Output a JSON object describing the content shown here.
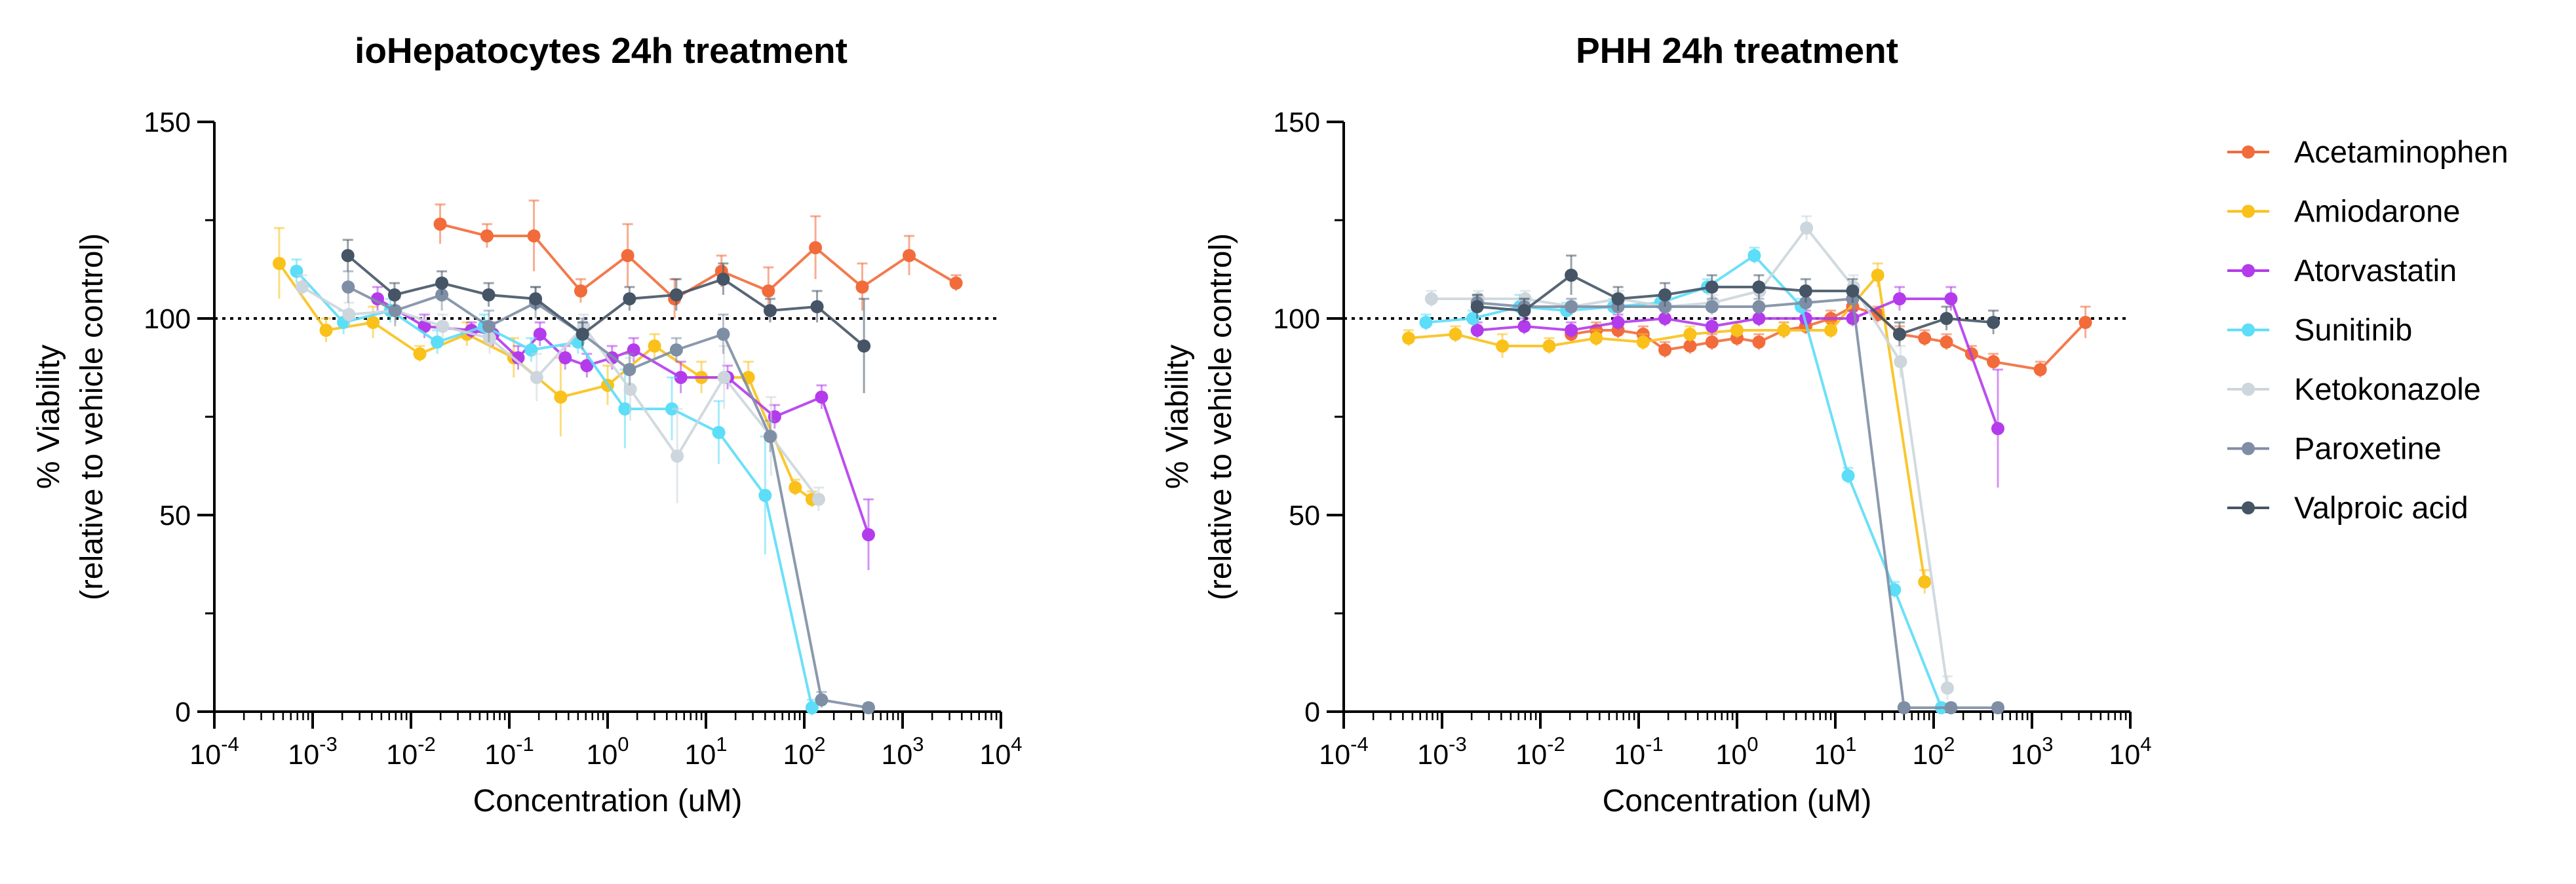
{
  "chart_data": [
    {
      "type": "line",
      "title": "ioHepatocytes 24h treatment",
      "xlabel": "Concentration (uM)",
      "ylabel_line1": "% Viability",
      "ylabel_line2": "(relative to vehicle control)",
      "x_scale": "log10",
      "xlim": [
        0.0001,
        10000
      ],
      "ylim": [
        0,
        150
      ],
      "x_ticks": [
        "10-4",
        "10-3",
        "10-2",
        "10-1",
        "100",
        "101",
        "102",
        "103",
        "104"
      ],
      "y_ticks": [
        0,
        50,
        100,
        150
      ],
      "reference_line": 100,
      "series": [
        {
          "name": "Acetaminophen",
          "x": [
            0.0198,
            0.0593,
            0.178,
            0.533,
            1.6,
            4.8,
            14.4,
            43.2,
            130,
            389,
            1166,
            3500
          ],
          "y": [
            124,
            121,
            121,
            107,
            116,
            105,
            112,
            107,
            118,
            108,
            116,
            109
          ],
          "err": [
            5,
            3,
            9,
            3,
            8,
            5,
            4,
            6,
            8,
            6,
            5,
            2
          ]
        },
        {
          "name": "Amiodarone",
          "x": [
            0.000457,
            0.00137,
            0.00411,
            0.0123,
            0.037,
            0.111,
            0.333,
            1.0,
            3.0,
            9.0,
            27,
            81,
            120
          ],
          "y": [
            114,
            97,
            99,
            91,
            96,
            90,
            80,
            83,
            93,
            85,
            85,
            57,
            54
          ],
          "err": [
            9,
            3,
            4,
            2,
            3,
            5,
            10,
            5,
            3,
            4,
            4,
            2,
            2
          ]
        },
        {
          "name": "Atorvastatin",
          "x": [
            0.00457,
            0.0137,
            0.0412,
            0.0682,
            0.123,
            0.205,
            0.37,
            0.615,
            1.11,
            1.84,
            5.55,
            16.6,
            50,
            150,
            450
          ],
          "y": [
            105,
            98,
            97,
            96,
            90,
            96,
            90,
            88,
            90,
            92,
            85,
            85,
            75,
            80,
            45
          ],
          "err": [
            3,
            3,
            2,
            3,
            3,
            3,
            3,
            3,
            3,
            3,
            4,
            3,
            3,
            3,
            9
          ]
        },
        {
          "name": "Sunitinib",
          "x": [
            0.000686,
            0.00206,
            0.00617,
            0.0185,
            0.0556,
            0.167,
            0.5,
            1.5,
            4.5,
            13.5,
            40,
            120
          ],
          "y": [
            112,
            99,
            102,
            94,
            98,
            92,
            94,
            77,
            77,
            71,
            55,
            1
          ],
          "err": [
            3,
            3,
            3,
            3,
            3,
            3,
            3,
            10,
            8,
            8,
            15,
            2
          ]
        },
        {
          "name": "Ketokonazole",
          "x": [
            0.00078,
            0.00234,
            0.007,
            0.021,
            0.063,
            0.19,
            0.57,
            1.7,
            5.1,
            15.3,
            46,
            140
          ],
          "y": [
            108,
            101,
            102,
            98,
            95,
            85,
            98,
            82,
            65,
            85,
            70,
            54
          ],
          "err": [
            3,
            3,
            3,
            3,
            4,
            6,
            3,
            8,
            12,
            8,
            10,
            3
          ]
        },
        {
          "name": "Paroxetine",
          "x": [
            0.0023,
            0.0069,
            0.0206,
            0.062,
            0.185,
            0.555,
            1.67,
            5.0,
            15,
            45,
            150,
            450
          ],
          "y": [
            108,
            102,
            106,
            98,
            104,
            96,
            87,
            92,
            96,
            70,
            3,
            1
          ],
          "err": [
            4,
            4,
            4,
            4,
            4,
            4,
            4,
            3,
            5,
            4,
            2,
            1
          ]
        },
        {
          "name": "Valproic acid",
          "x": [
            0.00228,
            0.0068,
            0.0206,
            0.0617,
            0.185,
            0.556,
            1.67,
            5.0,
            15,
            45,
            135,
            405
          ],
          "y": [
            116,
            106,
            109,
            106,
            105,
            96,
            105,
            106,
            110,
            102,
            103,
            93
          ],
          "err": [
            4,
            3,
            3,
            3,
            3,
            3,
            3,
            4,
            4,
            3,
            4,
            12
          ]
        }
      ]
    },
    {
      "type": "line",
      "title": "PHH 24h treatment",
      "xlabel": "Concentration (uM)",
      "ylabel_line1": "% Viability",
      "ylabel_line2": "(relative to vehicle control)",
      "x_scale": "log10",
      "xlim": [
        0.0001,
        10000
      ],
      "ylim": [
        0,
        150
      ],
      "x_ticks": [
        "10-4",
        "10-3",
        "10-2",
        "10-1",
        "100",
        "101",
        "102",
        "103",
        "104"
      ],
      "y_ticks": [
        0,
        50,
        100,
        150
      ],
      "reference_line": 100,
      "series": [
        {
          "name": "Acetaminophen",
          "x": [
            0.0206,
            0.037,
            0.0617,
            0.111,
            0.185,
            0.333,
            0.556,
            1.0,
            1.67,
            3.0,
            5.0,
            9.0,
            15,
            27,
            45,
            81,
            135,
            243,
            405,
            1215,
            3500
          ],
          "y": [
            96,
            97,
            97,
            96,
            92,
            93,
            94,
            95,
            94,
            97,
            98,
            100,
            103,
            101,
            96,
            95,
            94,
            91,
            89,
            87,
            99
          ],
          "err": [
            2,
            2,
            2,
            2,
            2,
            2,
            2,
            2,
            2,
            2,
            2,
            2,
            2,
            2,
            2,
            2,
            2,
            2,
            2,
            2,
            4
          ]
        },
        {
          "name": "Amiodarone",
          "x": [
            0.000457,
            0.00137,
            0.00411,
            0.0123,
            0.037,
            0.111,
            0.333,
            1.0,
            3.0,
            9.0,
            27,
            81
          ],
          "y": [
            95,
            96,
            93,
            93,
            95,
            94,
            96,
            97,
            97,
            97,
            111,
            33
          ],
          "err": [
            2,
            2,
            3,
            2,
            2,
            2,
            2,
            2,
            2,
            2,
            3,
            3
          ]
        },
        {
          "name": "Atorvastatin",
          "x": [
            0.00228,
            0.00686,
            0.0206,
            0.0617,
            0.185,
            0.556,
            1.67,
            5.0,
            15,
            45,
            150,
            450
          ],
          "y": [
            97,
            98,
            97,
            99,
            100,
            98,
            100,
            100,
            100,
            105,
            105,
            72
          ],
          "err": [
            2,
            2,
            2,
            2,
            2,
            2,
            2,
            2,
            2,
            3,
            3,
            15
          ]
        },
        {
          "name": "Sunitinib",
          "x": [
            0.000686,
            0.00206,
            0.00617,
            0.0185,
            0.0556,
            0.167,
            0.5,
            1.5,
            4.5,
            13.5,
            40,
            120
          ],
          "y": [
            99,
            100,
            103,
            102,
            103,
            104,
            108,
            116,
            103,
            60,
            31,
            1
          ],
          "err": [
            2,
            2,
            3,
            2,
            2,
            2,
            2,
            2,
            2,
            2,
            2,
            1
          ]
        },
        {
          "name": "Ketokonazole",
          "x": [
            0.00078,
            0.00234,
            0.007,
            0.021,
            0.063,
            0.19,
            0.57,
            1.7,
            5.1,
            15.3,
            46,
            138
          ],
          "y": [
            105,
            105,
            105,
            103,
            105,
            103,
            104,
            107,
            123,
            108,
            89,
            6
          ],
          "err": [
            2,
            2,
            2,
            2,
            2,
            2,
            2,
            2,
            3,
            3,
            4,
            3
          ]
        },
        {
          "name": "Paroxetine",
          "x": [
            0.00228,
            0.00686,
            0.0206,
            0.0617,
            0.185,
            0.556,
            1.67,
            5.0,
            15,
            50,
            150,
            450
          ],
          "y": [
            104,
            103,
            103,
            103,
            103,
            103,
            103,
            104,
            105,
            1,
            1,
            1
          ],
          "err": [
            2,
            2,
            2,
            2,
            2,
            2,
            2,
            2,
            2,
            1,
            1,
            1
          ]
        },
        {
          "name": "Valproic acid",
          "x": [
            0.00228,
            0.00686,
            0.0206,
            0.0617,
            0.185,
            0.556,
            1.67,
            5.0,
            15,
            45,
            135,
            405
          ],
          "y": [
            103,
            102,
            111,
            105,
            106,
            108,
            108,
            107,
            107,
            96,
            100,
            99
          ],
          "err": [
            3,
            3,
            5,
            3,
            3,
            3,
            3,
            3,
            3,
            3,
            3,
            3
          ]
        }
      ]
    }
  ],
  "legend": {
    "placement": "right",
    "items": [
      {
        "name": "Acetaminophen",
        "color": "#F26B3A"
      },
      {
        "name": "Amiodarone",
        "color": "#F9C11A"
      },
      {
        "name": "Atorvastatin",
        "color": "#B43BEB"
      },
      {
        "name": "Sunitinib",
        "color": "#5CDDF8"
      },
      {
        "name": "Ketokonazole",
        "color": "#CCD6DC"
      },
      {
        "name": "Paroxetine",
        "color": "#7E8EA4"
      },
      {
        "name": "Valproic acid",
        "color": "#455566"
      }
    ]
  }
}
